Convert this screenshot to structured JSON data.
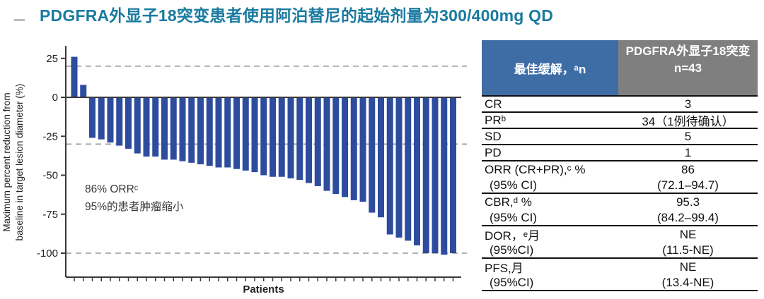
{
  "title": "PDGFRA外显子18突变患者使用阿泊替尼的起始剂量为300/400mg QD",
  "colors": {
    "title": "#1b7aa0",
    "bar": "#2d4c9e",
    "axis": "#3a3a3a",
    "dashed_line": "#9a9a9a",
    "annotation_text": "#3a3a3a",
    "header_left_bg": "#3e6da6",
    "header_right_bg": "#7f7f7f"
  },
  "chart_data": {
    "type": "bar",
    "subtype": "waterfall",
    "title": "",
    "xlabel": "Patients",
    "ylabel": "Maximum percent reduction from baseline in target lesion diameter (%)",
    "ylabel_line1": "Maximum percent reduction from",
    "ylabel_line2": "baseline in target lesion diameter (%)",
    "ylim": [
      -110,
      35
    ],
    "yticks": [
      25,
      0,
      -25,
      -50,
      -75,
      -100
    ],
    "reference_lines_dashed": [
      20,
      -30,
      -100
    ],
    "legend": "none",
    "annotation_line1": "86% ORRᶜ",
    "annotation_line2": "95%的患者肿瘤缩小",
    "values": [
      26,
      8,
      -26,
      -27,
      -29,
      -31,
      -33,
      -36,
      -38,
      -38,
      -40,
      -40,
      -41,
      -42,
      -43,
      -44,
      -45,
      -45,
      -46,
      -47,
      -48,
      -50,
      -51,
      -51,
      -52,
      -53,
      -55,
      -57,
      -60,
      -62,
      -64,
      -66,
      -67,
      -74,
      -77,
      -88,
      -90,
      -92,
      -95,
      -100,
      -100,
      -101,
      -100
    ]
  },
  "table": {
    "header": {
      "left": "最佳缓解，ᵃn",
      "right_title": "PDGFRA外显子18突变",
      "right_n": "n=43"
    },
    "rows": [
      {
        "label": "CR",
        "value": "3",
        "border": true,
        "indent": false
      },
      {
        "label": "PRᵇ",
        "value": "34（1例待确认）",
        "border": true,
        "indent": false
      },
      {
        "label": "SD",
        "value": "5",
        "border": true,
        "indent": false
      },
      {
        "label": "PD",
        "value": "1",
        "border": true,
        "indent": false
      },
      {
        "label": "ORR (CR+PR),ᶜ %",
        "value": "86",
        "border": false,
        "indent": false
      },
      {
        "label": "(95% CI)",
        "value": "(72.1–94.7)",
        "border": true,
        "indent": true
      },
      {
        "label": "CBR,ᵈ %",
        "value": "95.3",
        "border": false,
        "indent": false
      },
      {
        "label": "(95% CI)",
        "value": "(84.2–99.4)",
        "border": true,
        "indent": true
      },
      {
        "label": "DOR，ᵉ月",
        "value": "NE",
        "border": false,
        "indent": false
      },
      {
        "label": "(95%CI)",
        "value": "(11.5-NE)",
        "border": true,
        "indent": true
      },
      {
        "label": "PFS,月",
        "value": "NE",
        "border": false,
        "indent": false
      },
      {
        "label": "(95%CI)",
        "value": "(13.4-NE)",
        "border": true,
        "indent": true
      }
    ]
  }
}
